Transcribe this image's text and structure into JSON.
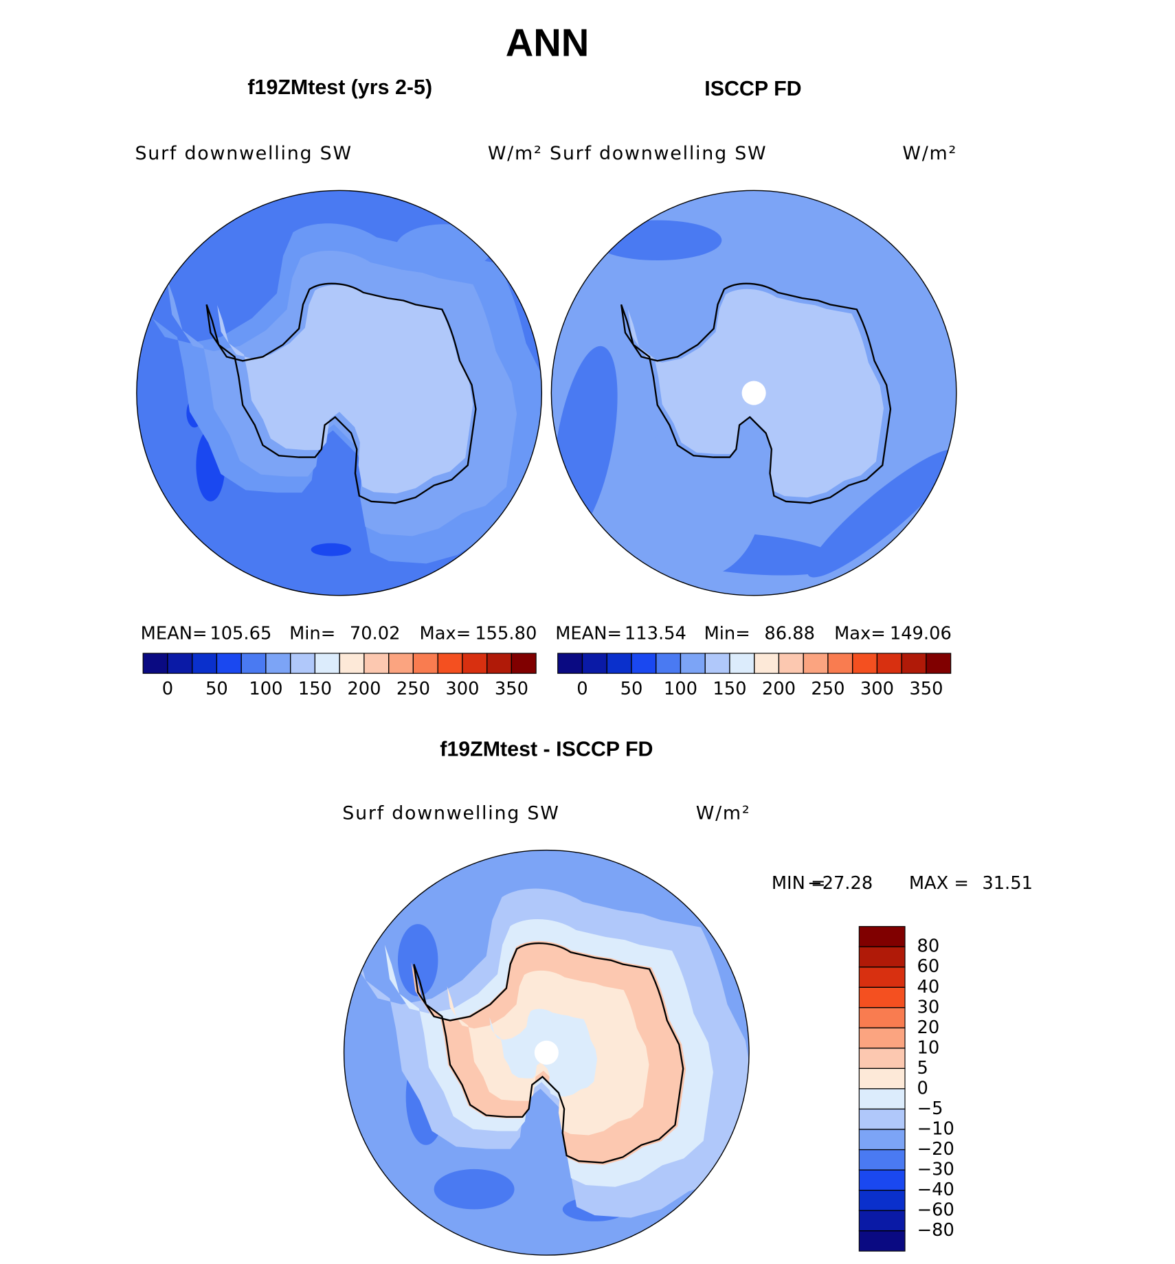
{
  "title": "ANN",
  "panels": [
    {
      "title": "f19ZMtest (yrs 2-5)",
      "variable": "Surf downwelling SW",
      "units": "W/m²",
      "mean_label": "MEAN=",
      "mean": 105.65,
      "min_label": "Min=",
      "min": 70.02,
      "max_label": "Max=",
      "max": {
        "value": 155.8,
        "label": "155.80"
      }
    },
    {
      "title": "ISCCP FD",
      "variable": "Surf downwelling SW",
      "units": "W/m²",
      "mean_label": "MEAN=",
      "mean": 113.54,
      "min_label": "Min=",
      "min": 86.88,
      "max_label": "Max=",
      "max": 149.06
    }
  ],
  "colorbar": {
    "levels": [
      0,
      25,
      50,
      75,
      100,
      125,
      150,
      175,
      200,
      225,
      250,
      275,
      300,
      325,
      350
    ],
    "ticks": [
      0,
      50,
      100,
      150,
      200,
      250,
      300,
      350
    ],
    "colors": [
      "#0a0a82",
      "#0a1aa6",
      "#0a30cc",
      "#1a48f0",
      "#4a7af2",
      "#7ca4f6",
      "#b0c8fa",
      "#dcecfc",
      "#fde9d8",
      "#fcc8b0",
      "#fba480",
      "#f97c50",
      "#f45020",
      "#d83010",
      "#b01a08",
      "#800000"
    ]
  },
  "difference": {
    "title": "f19ZMtest - ISCCP FD",
    "variable": "Surf downwelling SW",
    "units": "W/m²",
    "min_label": "MIN =",
    "min": {
      "value": -27.28,
      "label": "−27.28"
    },
    "max_label": "MAX =",
    "max": 31.51,
    "colorbar": {
      "ticks": [
        80,
        60,
        40,
        30,
        20,
        10,
        5,
        0,
        {
          "value": -5,
          "label": "−5"
        },
        {
          "value": -10,
          "label": "−10"
        },
        {
          "value": -20,
          "label": "−20"
        },
        {
          "value": -30,
          "label": "−30"
        },
        {
          "value": -40,
          "label": "−40"
        },
        {
          "value": -60,
          "label": "−60"
        },
        {
          "value": -80,
          "label": "−80"
        }
      ],
      "colors": [
        "#800000",
        "#b01a08",
        "#d83010",
        "#f45020",
        "#f97c50",
        "#fba480",
        "#fcc8b0",
        "#fde9d8",
        "#dcecfc",
        "#b0c8fa",
        "#7ca4f6",
        "#4a7af2",
        "#1a48f0",
        "#0a30cc",
        "#0a1aa6",
        "#0a0a82"
      ]
    }
  }
}
